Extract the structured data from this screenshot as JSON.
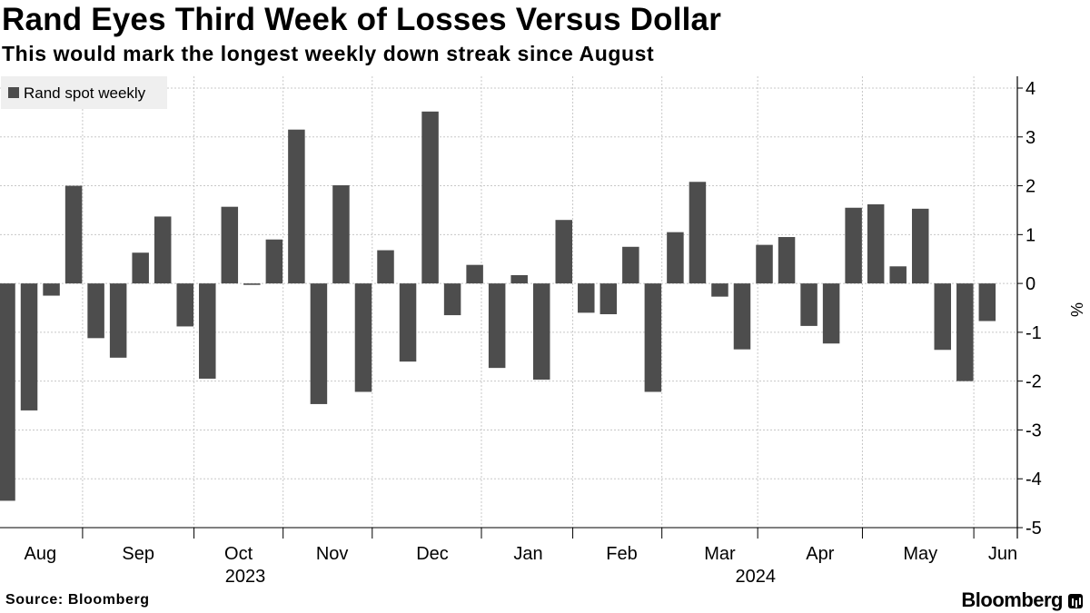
{
  "header": {
    "title": "Rand Eyes Third Week of Losses Versus Dollar",
    "subtitle": "This would mark the longest weekly down streak since August"
  },
  "footer": {
    "source": "Source: Bloomberg",
    "brand": "Bloomberg"
  },
  "colors": {
    "bar": "#4d4d4d",
    "grid": "#c8c8c8",
    "legend_bg": "#efefef"
  },
  "chart_data": {
    "type": "bar",
    "title": "Rand Eyes Third Week of Losses Versus Dollar",
    "subtitle": "This would mark the longest weekly down streak since August",
    "series": [
      {
        "name": "Rand spot weekly",
        "values": [
          -4.45,
          -2.6,
          -0.25,
          2.0,
          -1.12,
          -1.52,
          0.63,
          1.37,
          -0.88,
          -1.95,
          1.57,
          -0.03,
          0.9,
          3.15,
          -2.47,
          2.01,
          -2.22,
          0.68,
          -1.6,
          3.52,
          -0.65,
          0.38,
          -1.73,
          0.17,
          -1.97,
          1.3,
          -0.6,
          -0.63,
          0.75,
          -2.22,
          1.05,
          2.08,
          -0.27,
          -1.35,
          0.79,
          0.95,
          -0.87,
          -1.23,
          1.55,
          1.62,
          0.35,
          1.53,
          -1.36,
          -2.0,
          -0.77
        ]
      }
    ],
    "ylabel": "%",
    "ylim": [
      -5,
      4
    ],
    "yticks": [
      4,
      3,
      2,
      1,
      0,
      -1,
      -2,
      -3,
      -4,
      -5
    ],
    "ytick_labels": [
      "4",
      "3",
      "2",
      "1",
      "0",
      "-1",
      "-2",
      "-3",
      "-4",
      "-5"
    ],
    "x_axis": {
      "month_labels": [
        {
          "label": "Aug",
          "week": 1.5
        },
        {
          "label": "Sep",
          "week": 5.9
        },
        {
          "label": "Oct",
          "week": 10.4
        },
        {
          "label": "Nov",
          "week": 14.6
        },
        {
          "label": "Dec",
          "week": 19.1
        },
        {
          "label": "Jan",
          "week": 23.4
        },
        {
          "label": "Feb",
          "week": 27.6
        },
        {
          "label": "Mar",
          "week": 32.0
        },
        {
          "label": "Apr",
          "week": 36.5
        },
        {
          "label": "May",
          "week": 41.0
        },
        {
          "label": "Jun",
          "week": 44.7
        }
      ],
      "year_labels": [
        {
          "label": "2023",
          "week": 10.7
        },
        {
          "label": "2024",
          "week": 33.6
        }
      ],
      "month_boundaries": [
        3.4,
        8.4,
        12.4,
        16.4,
        21.3,
        25.4,
        29.4,
        33.7,
        38.4,
        43.4
      ]
    },
    "legend": {
      "label": "Rand spot weekly",
      "position": "top-left"
    },
    "grid": true
  }
}
